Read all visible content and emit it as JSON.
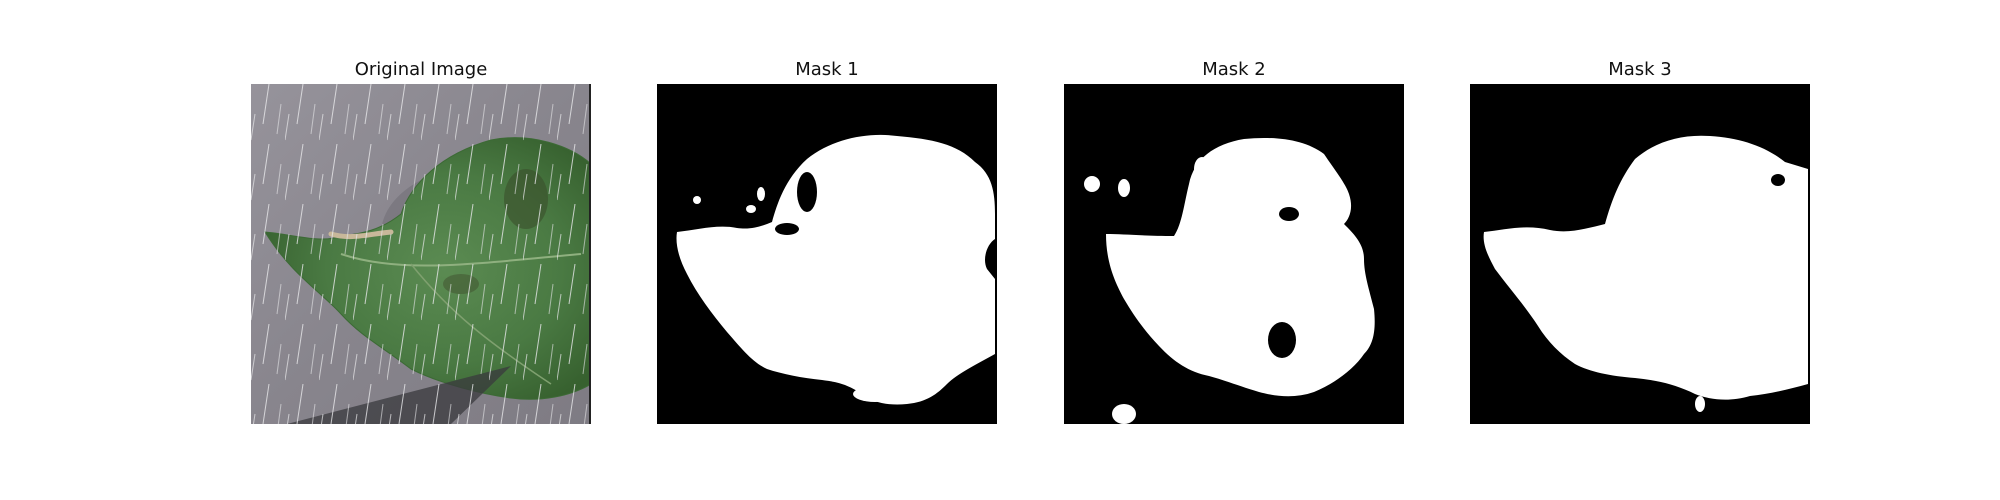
{
  "panels": [
    {
      "title": "Original Image"
    },
    {
      "title": "Mask 1"
    },
    {
      "title": "Mask 2"
    },
    {
      "title": "Mask 3"
    }
  ],
  "colors": {
    "background": "#ffffff",
    "mask_background": "#000000",
    "mask_foreground": "#ffffff",
    "leaf": "#4f7f48",
    "ground": "#8a8790"
  }
}
